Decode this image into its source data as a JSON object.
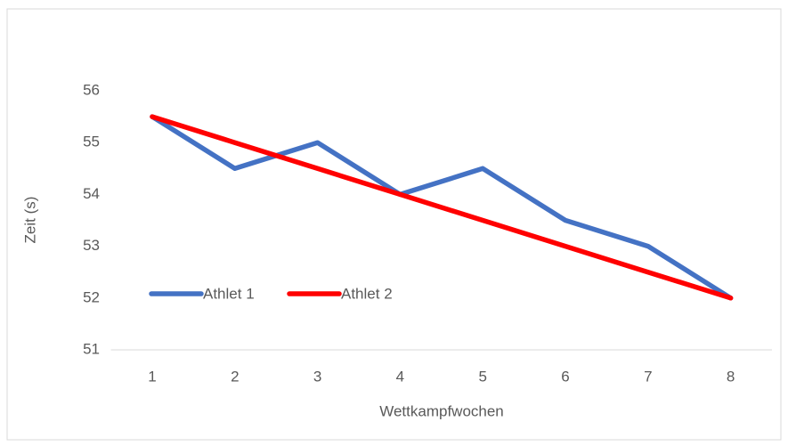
{
  "chart_data": {
    "type": "line",
    "categories": [
      "1",
      "2",
      "3",
      "4",
      "5",
      "6",
      "7",
      "8"
    ],
    "series": [
      {
        "name": "Athlet 1",
        "color": "#4472c4",
        "values": [
          55.5,
          54.5,
          55,
          54,
          54.5,
          53.5,
          53,
          52
        ]
      },
      {
        "name": "Athlet 2",
        "color": "#ff0000",
        "values": [
          55.5,
          55,
          54.5,
          54,
          53.5,
          53,
          52.5,
          52
        ]
      }
    ],
    "xlabel": "Wettkampfwochen",
    "ylabel": "Zeit (s)",
    "ylim": [
      51,
      56
    ],
    "yticks": [
      51,
      52,
      53,
      54,
      55,
      56
    ],
    "grid": false,
    "legend": "inside-left"
  }
}
